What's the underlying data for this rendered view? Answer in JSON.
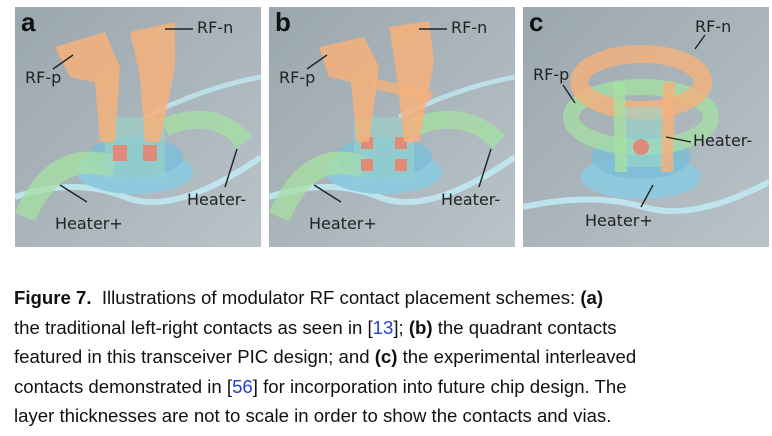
{
  "panels": [
    {
      "letter": "a",
      "labels": {
        "rf_n": "RF-n",
        "rf_p": "RF-p",
        "heater_plus": "Heater+",
        "heater_minus": "Heater-"
      }
    },
    {
      "letter": "b",
      "labels": {
        "rf_n": "RF-n",
        "rf_p": "RF-p",
        "heater_plus": "Heater+",
        "heater_minus": "Heater-"
      }
    },
    {
      "letter": "c",
      "labels": {
        "rf_n": "RF-n",
        "rf_p": "RF-p",
        "heater_plus": "Heater+",
        "heater_minus": "Heater-"
      }
    }
  ],
  "caption": {
    "figure_label": "Figure 7.",
    "intro": "Illustrations of modulator RF contact placement schemes:",
    "a_marker": "(a)",
    "line2_pre": "the traditional left-right contacts as seen in [",
    "ref1": "13",
    "line2_post": "];",
    "b_marker": "(b)",
    "line2_tail": "the quadrant contacts",
    "line3_pre": "featured in this transceiver PIC design; and",
    "c_marker": "(c)",
    "line3_post": "the experimental interleaved",
    "line4_pre": "contacts demonstrated in [",
    "ref2": "56",
    "line4_post": "] for incorporation into future chip design. The",
    "line5": "layer thicknesses are not to scale in order to show the contacts and vias."
  },
  "colors": {
    "background": "#a8b3ba",
    "rf_contact": "#f6b27a",
    "heater": "#a6e0a3",
    "waveguide": "#bfe8f2",
    "via": "#e08a7a",
    "caption_ref": "#1f3fd0"
  }
}
